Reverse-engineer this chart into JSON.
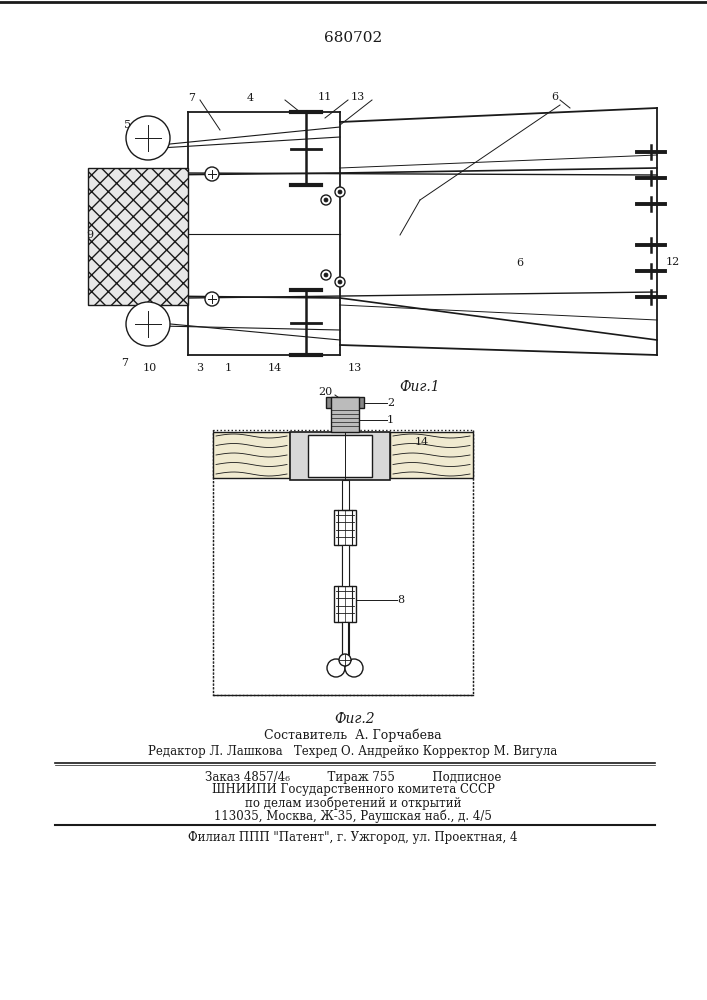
{
  "title": "680702",
  "fig1_caption": "Фиг.1",
  "fig2_caption": "Фиг.2",
  "footer_lines": [
    "Составитель  А. Горчабева",
    "Редактор Л. Лашкова   Техред О. Андрейко Корректор М. Вигула",
    "Заказ 4857/4₆          Тираж 755          Подписное",
    "ШНИИПИ Государственного комитета СССР",
    "по делам изобретений и открытий",
    "113035, Москва, Ж-35, Раушская наб., д. 4/5",
    "Филиал ППП \"Патент\", г. Ужгород, ул. Проектная, 4"
  ],
  "bg_color": "#ffffff",
  "line_color": "#1a1a1a"
}
